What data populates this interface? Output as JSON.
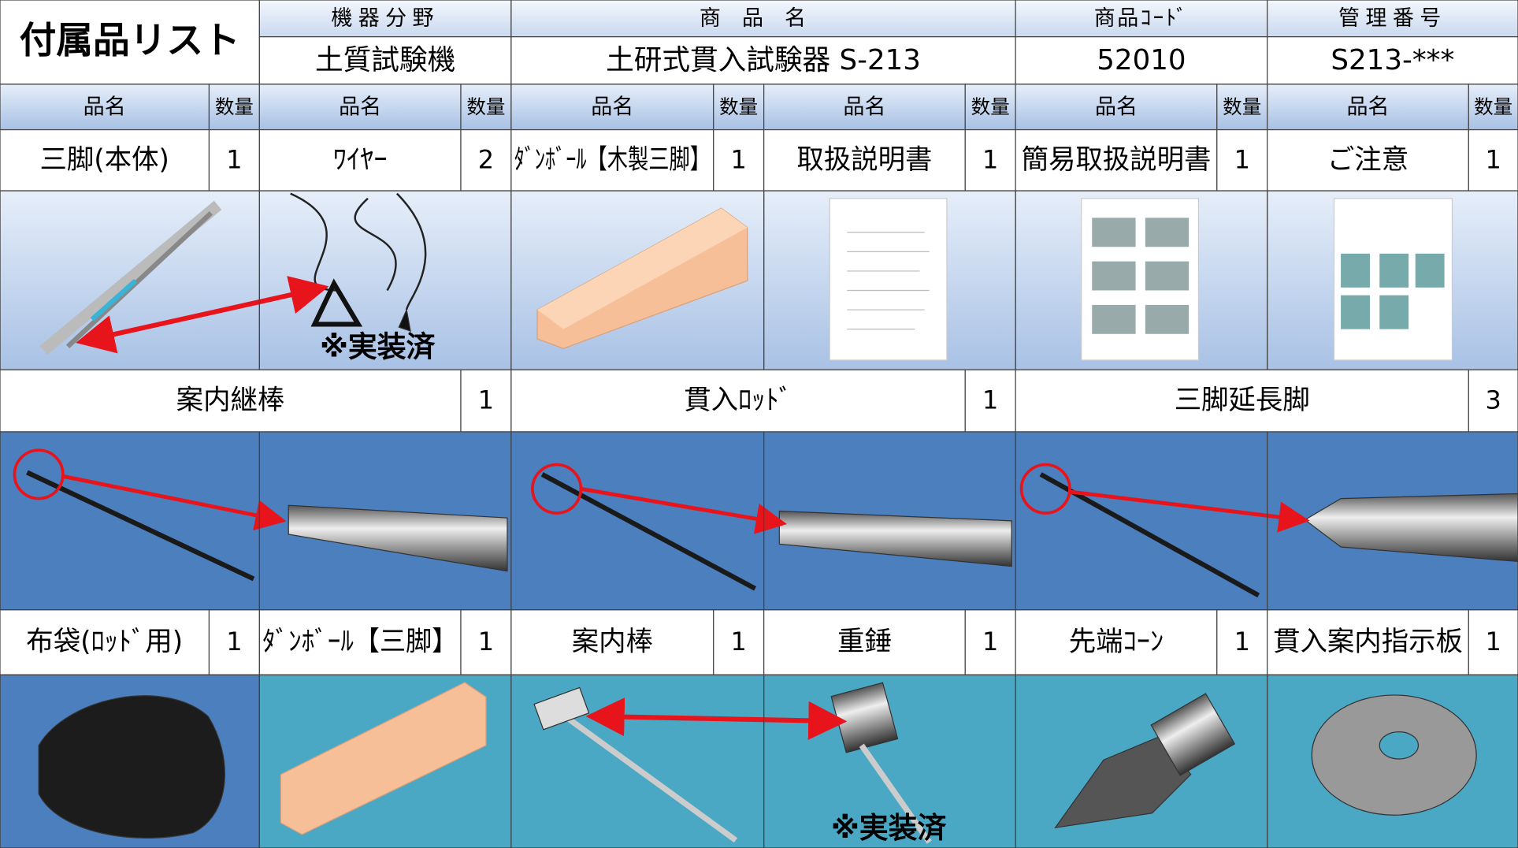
{
  "header": {
    "title": "付属品リスト",
    "columns": [
      {
        "label": "機器分野",
        "value": "土質試験機"
      },
      {
        "label": "商品名",
        "value": "土研式貫入試験器 S-213"
      },
      {
        "label": "商品ｺｰﾄﾞ",
        "value": "52010"
      },
      {
        "label": "管理番号",
        "value": "S213-***"
      }
    ]
  },
  "list_header": [
    "品名",
    "数量",
    "品名",
    "数量",
    "品名",
    "数量",
    "品名",
    "数量",
    "品名",
    "数量",
    "品名",
    "数量"
  ],
  "rows": [
    [
      {
        "name": "三脚(本体)",
        "qty": 1
      },
      {
        "name": "ﾜｲﾔｰ",
        "qty": 2
      },
      {
        "name": "ﾀﾞﾝﾎﾞｰﾙ【木製三脚】",
        "qty": 1
      },
      {
        "name": "取扱説明書",
        "qty": 1
      },
      {
        "name": "簡易取扱説明書",
        "qty": 1
      },
      {
        "name": "ご注意",
        "qty": 1
      }
    ],
    [
      {
        "name": "案内継棒",
        "qty": 1
      },
      {
        "name": "貫入ﾛｯﾄﾞ",
        "qty": 1
      },
      {
        "name": "三脚延長脚",
        "qty": 3
      }
    ],
    [
      {
        "name": "布袋(ﾛｯﾄﾞ用)",
        "qty": 1
      },
      {
        "name": "ﾀﾞﾝﾎﾞｰﾙ【三脚】",
        "qty": 1
      },
      {
        "name": "案内棒",
        "qty": 1
      },
      {
        "name": "重錘",
        "qty": 1
      },
      {
        "name": "先端ｺｰﾝ",
        "qty": 1
      },
      {
        "name": "貫入案内指示板",
        "qty": 1
      }
    ]
  ],
  "notes": [
    "※実装済",
    "※実装済"
  ]
}
